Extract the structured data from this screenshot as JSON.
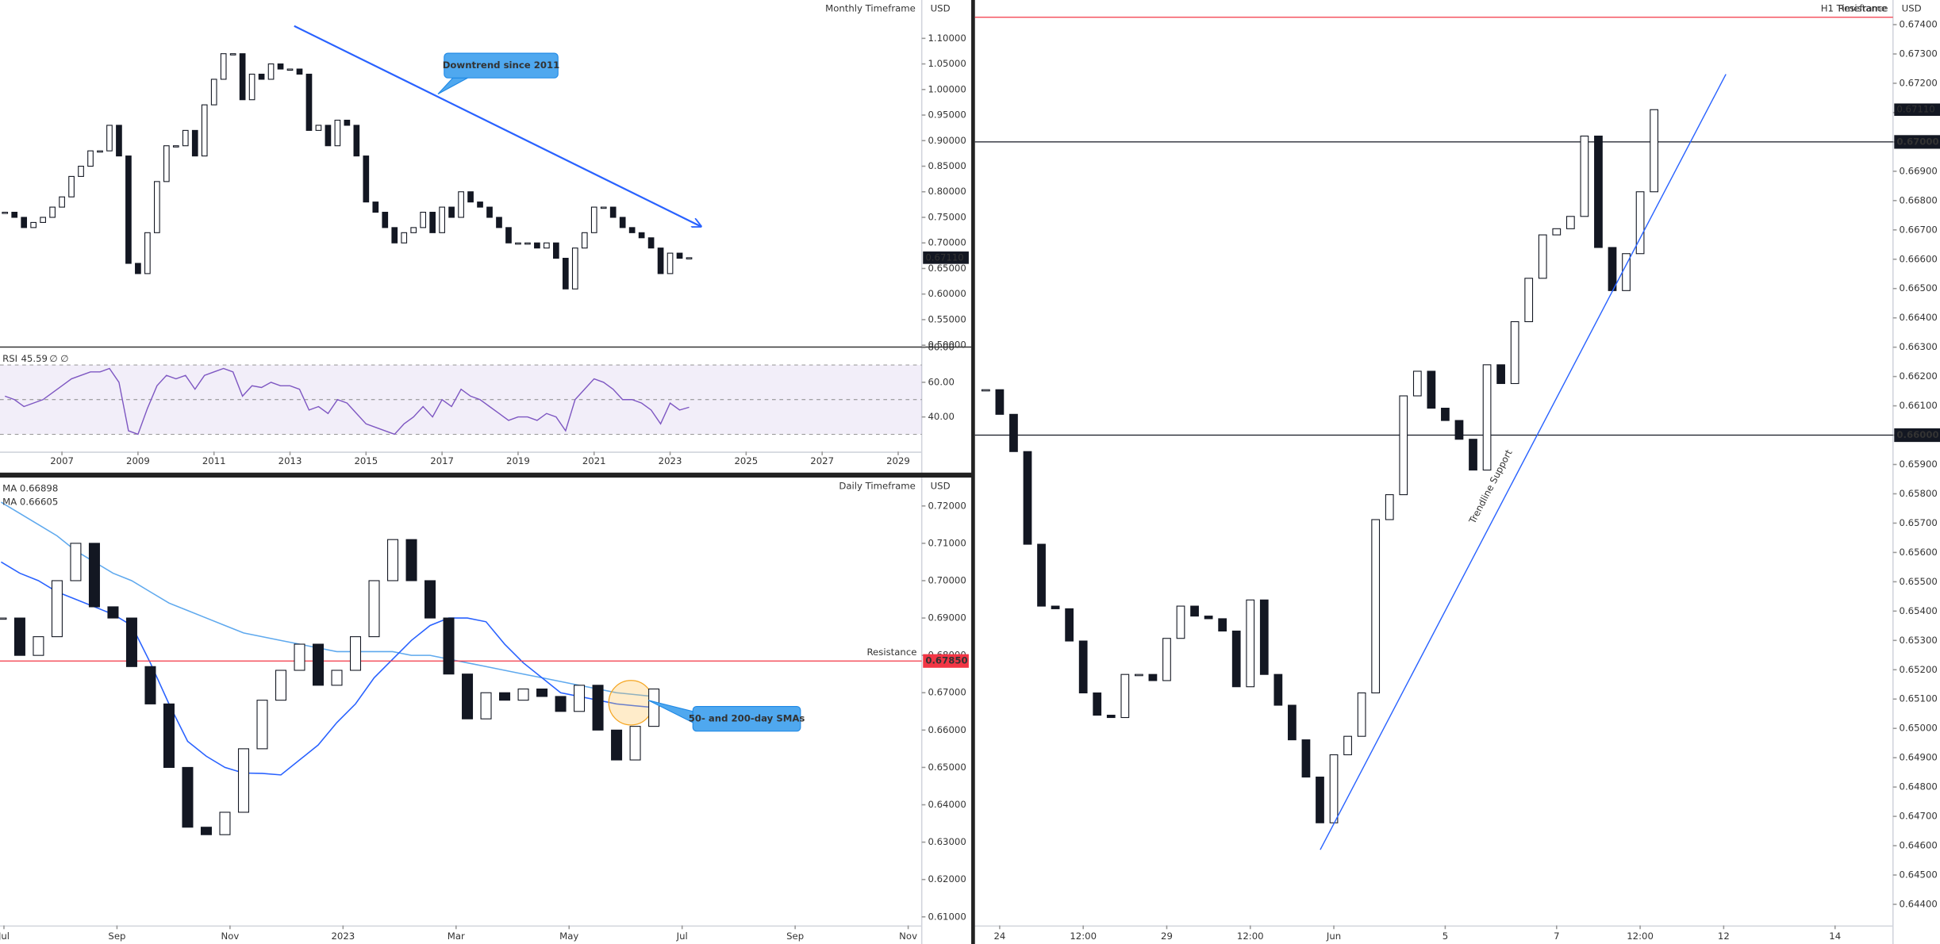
{
  "chart_data": [
    {
      "type": "candlestick",
      "title": "Monthly Timeframe",
      "currency": "USD",
      "x": [
        2005.5,
        2005.75,
        2006,
        2006.25,
        2006.5,
        2006.75,
        2007,
        2007.25,
        2007.5,
        2007.75,
        2008,
        2008.25,
        2008.5,
        2008.75,
        2009,
        2009.25,
        2009.5,
        2009.75,
        2010,
        2010.25,
        2010.5,
        2010.75,
        2011,
        2011.25,
        2011.5,
        2011.75,
        2012,
        2012.25,
        2012.5,
        2012.75,
        2013,
        2013.25,
        2013.5,
        2013.75,
        2014,
        2014.25,
        2014.5,
        2014.75,
        2015,
        2015.25,
        2015.5,
        2015.75,
        2016,
        2016.25,
        2016.5,
        2016.75,
        2017,
        2017.25,
        2017.5,
        2017.75,
        2018,
        2018.25,
        2018.5,
        2018.75,
        2019,
        2019.25,
        2019.5,
        2019.75,
        2020,
        2020.25,
        2020.5,
        2020.75,
        2021,
        2021.25,
        2021.5,
        2021.75,
        2022,
        2022.25,
        2022.5,
        2022.75,
        2023,
        2023.25,
        2023.5
      ],
      "values": [
        0.76,
        0.75,
        0.73,
        0.74,
        0.75,
        0.77,
        0.79,
        0.83,
        0.85,
        0.88,
        0.88,
        0.93,
        0.87,
        0.66,
        0.64,
        0.72,
        0.82,
        0.89,
        0.89,
        0.92,
        0.87,
        0.97,
        1.02,
        1.07,
        1.07,
        0.98,
        1.03,
        1.02,
        1.05,
        1.04,
        1.04,
        1.03,
        0.92,
        0.93,
        0.89,
        0.94,
        0.93,
        0.87,
        0.78,
        0.76,
        0.73,
        0.7,
        0.72,
        0.73,
        0.76,
        0.72,
        0.77,
        0.75,
        0.8,
        0.78,
        0.77,
        0.75,
        0.73,
        0.7,
        0.7,
        0.7,
        0.69,
        0.7,
        0.67,
        0.61,
        0.69,
        0.72,
        0.77,
        0.77,
        0.75,
        0.73,
        0.72,
        0.71,
        0.69,
        0.64,
        0.68,
        0.67,
        0.6711
      ],
      "xlim": [
        2005.37,
        2029.62
      ],
      "xticks": [
        2007,
        2009,
        2011,
        2013,
        2015,
        2017,
        2019,
        2021,
        2023,
        2025,
        2027,
        2029
      ],
      "ylim": [
        0.4976,
        1.175
      ],
      "yticks": [
        {
          "value": 0.5,
          "label": "0.50000"
        },
        {
          "value": 0.55,
          "label": "0.55000"
        },
        {
          "value": 0.6,
          "label": "0.60000"
        },
        {
          "value": 0.65,
          "label": "0.65000"
        },
        {
          "value": 0.7,
          "label": "0.70000"
        },
        {
          "value": 0.75,
          "label": "0.75000"
        },
        {
          "value": 0.8,
          "label": "0.80000"
        },
        {
          "value": 0.85,
          "label": "0.85000"
        },
        {
          "value": 0.9,
          "label": "0.90000"
        },
        {
          "value": 0.95,
          "label": "0.95000"
        },
        {
          "value": 1.0,
          "label": "1.00000"
        },
        {
          "value": 1.05,
          "label": "1.05000"
        },
        {
          "value": 1.1,
          "label": "1.10000"
        }
      ],
      "grid": false,
      "price_label": {
        "value": 0.6711,
        "label": "0.67110"
      },
      "trendline": {
        "start": {
          "x": 2013.11,
          "y": 1.1242
        },
        "end": {
          "x": 2023.81,
          "y": 0.7322
        },
        "color": "#2962ff",
        "arrow": true
      },
      "annotation": "Downtrend since 2011",
      "rsi": {
        "label": "RSI",
        "markers": "∅ ∅",
        "color": "#7e57c2",
        "values": [
          52,
          50,
          46,
          48,
          50,
          54,
          58,
          62,
          64,
          66,
          66,
          68,
          60,
          32,
          30,
          45,
          58,
          64,
          62,
          64,
          56,
          64,
          66,
          68,
          66,
          52,
          58,
          57,
          60,
          58,
          58,
          56,
          44,
          46,
          42,
          50,
          48,
          42,
          36,
          34,
          32,
          30,
          36,
          40,
          46,
          40,
          50,
          46,
          56,
          52,
          50,
          46,
          42,
          38,
          40,
          40,
          38,
          42,
          40,
          32,
          50,
          56,
          62,
          60,
          56,
          50,
          50,
          48,
          44,
          36,
          48,
          44,
          45.59
        ],
        "ylim": [
          20,
          80
        ],
        "yticks": [
          {
            "value": 40,
            "label": "40.00"
          },
          {
            "value": 60,
            "label": "60.00"
          },
          {
            "value": 80,
            "label": "80.00"
          }
        ],
        "bands": [
          30,
          50,
          70
        ]
      }
    },
    {
      "type": "candlestick",
      "title": "Daily Timeframe",
      "currency": "USD",
      "x": [
        5.95,
        6.28,
        6.61,
        6.94,
        7.27,
        7.6,
        7.93,
        8.26,
        8.59,
        8.92,
        9.25,
        9.58,
        9.91,
        10.24,
        10.57,
        10.9,
        11.23,
        11.56,
        11.89,
        12.22,
        12.55,
        12.88,
        13.21,
        13.54,
        13.87,
        14.2,
        14.53,
        14.86,
        15.19,
        15.52,
        15.85,
        16.18,
        16.51,
        16.84,
        17.17,
        17.5
      ],
      "values": [
        0.69,
        0.68,
        0.685,
        0.7,
        0.71,
        0.693,
        0.69,
        0.677,
        0.667,
        0.65,
        0.634,
        0.632,
        0.638,
        0.655,
        0.668,
        0.676,
        0.683,
        0.672,
        0.676,
        0.685,
        0.7,
        0.711,
        0.7,
        0.69,
        0.675,
        0.663,
        0.67,
        0.668,
        0.671,
        0.669,
        0.665,
        0.672,
        0.66,
        0.652,
        0.661,
        0.671
      ],
      "series": [
        {
          "name": "MA",
          "color": "#5fa9ee",
          "values": [
            0.721,
            0.718,
            0.715,
            0.712,
            0.708,
            0.705,
            0.702,
            0.7,
            0.697,
            0.694,
            0.692,
            0.69,
            0.688,
            0.686,
            0.685,
            0.684,
            0.683,
            0.682,
            0.681,
            0.681,
            0.681,
            0.681,
            0.68,
            0.68,
            0.679,
            0.678,
            0.677,
            0.676,
            0.675,
            0.674,
            0.673,
            0.672,
            0.671,
            0.67,
            0.6695,
            0.66898
          ]
        },
        {
          "name": "MA",
          "color": "#2962ff",
          "values": [
            0.705,
            0.702,
            0.7,
            0.697,
            0.695,
            0.693,
            0.691,
            0.688,
            0.678,
            0.667,
            0.657,
            0.653,
            0.65,
            0.6485,
            0.6484,
            0.648,
            0.652,
            0.656,
            0.662,
            0.667,
            0.674,
            0.679,
            0.684,
            0.688,
            0.69,
            0.69,
            0.689,
            0.683,
            0.678,
            0.674,
            0.67,
            0.669,
            0.668,
            0.667,
            0.6665,
            0.66605
          ]
        }
      ],
      "xlim": [
        5.93,
        22.24
      ],
      "xticks": [
        {
          "value": 6,
          "label": "Jul"
        },
        {
          "value": 8,
          "label": "Sep"
        },
        {
          "value": 10,
          "label": "Nov"
        },
        {
          "value": 12,
          "label": "2023"
        },
        {
          "value": 14,
          "label": "Mar"
        },
        {
          "value": 16,
          "label": "May"
        },
        {
          "value": 18,
          "label": "Jul"
        },
        {
          "value": 20,
          "label": "Sep"
        },
        {
          "value": 22,
          "label": "Nov"
        }
      ],
      "ylim": [
        0.6077,
        0.7276
      ],
      "yticks": [
        {
          "value": 0.61,
          "label": "0.61000"
        },
        {
          "value": 0.62,
          "label": "0.62000"
        },
        {
          "value": 0.63,
          "label": "0.63000"
        },
        {
          "value": 0.64,
          "label": "0.64000"
        },
        {
          "value": 0.65,
          "label": "0.65000"
        },
        {
          "value": 0.66,
          "label": "0.66000"
        },
        {
          "value": 0.67,
          "label": "0.67000"
        },
        {
          "value": 0.68,
          "label": "0.68000"
        },
        {
          "value": 0.69,
          "label": "0.69000"
        },
        {
          "value": 0.7,
          "label": "0.70000"
        },
        {
          "value": 0.71,
          "label": "0.71000"
        },
        {
          "value": 0.72,
          "label": "0.72000"
        }
      ],
      "grid": false,
      "levels": [
        {
          "value": 0.6785,
          "label": "0.67850",
          "text": "Resistance",
          "color": "#f23645"
        }
      ],
      "annotation": "50- and 200-day SMAs"
    },
    {
      "type": "candlestick",
      "title": "H1 Timeframe",
      "currency": "USD",
      "x": [
        -0.25,
        0,
        0.25,
        0.5,
        0.75,
        1,
        1.25,
        1.5,
        1.75,
        2,
        2.25,
        2.5,
        2.75,
        3,
        3.25,
        3.5,
        3.75,
        4,
        4.25,
        4.5,
        4.75,
        5,
        5.25,
        5.5,
        5.75,
        6,
        6.25,
        6.5,
        6.75,
        7,
        7.25,
        7.5,
        7.75,
        8,
        8.25,
        8.5,
        8.75,
        9,
        9.25,
        9.5,
        9.75,
        10,
        10.25,
        10.5,
        10.75,
        11,
        11.25,
        11.5,
        11.75
      ],
      "values": [
        0.66155,
        0.66071,
        0.65944,
        0.65628,
        0.65417,
        0.65408,
        0.65298,
        0.65121,
        0.65045,
        0.65037,
        0.65184,
        0.65184,
        0.65163,
        0.65307,
        0.65417,
        0.65383,
        0.65374,
        0.65332,
        0.65142,
        0.65438,
        0.65184,
        0.65079,
        0.64961,
        0.64834,
        0.64678,
        0.6491,
        0.64973,
        0.65121,
        0.65712,
        0.65797,
        0.66134,
        0.66218,
        0.66092,
        0.6605,
        0.65986,
        0.65881,
        0.6624,
        0.66176,
        0.66387,
        0.66535,
        0.66683,
        0.66704,
        0.66746,
        0.6702,
        0.6664,
        0.66493,
        0.66619,
        0.6683,
        0.6711
      ],
      "xlim": [
        -0.444,
        16.04
      ],
      "xticks": [
        {
          "value": 0,
          "label": "24"
        },
        {
          "value": 1.5,
          "label": "12:00"
        },
        {
          "value": 3,
          "label": "29"
        },
        {
          "value": 4.5,
          "label": "12:00"
        },
        {
          "value": 6,
          "label": "Jun"
        },
        {
          "value": 8,
          "label": "5"
        },
        {
          "value": 10,
          "label": "7"
        },
        {
          "value": 11.5,
          "label": "12:00"
        },
        {
          "value": 13,
          "label": "12"
        },
        {
          "value": 15,
          "label": "14"
        }
      ],
      "ylim": [
        0.64328,
        0.67484
      ],
      "yticks": [
        {
          "value": 0.644,
          "label": "0.64400"
        },
        {
          "value": 0.645,
          "label": "0.64500"
        },
        {
          "value": 0.646,
          "label": "0.64600"
        },
        {
          "value": 0.647,
          "label": "0.64700"
        },
        {
          "value": 0.648,
          "label": "0.64800"
        },
        {
          "value": 0.649,
          "label": "0.64900"
        },
        {
          "value": 0.65,
          "label": "0.65000"
        },
        {
          "value": 0.651,
          "label": "0.65100"
        },
        {
          "value": 0.652,
          "label": "0.65200"
        },
        {
          "value": 0.653,
          "label": "0.65300"
        },
        {
          "value": 0.654,
          "label": "0.65400"
        },
        {
          "value": 0.655,
          "label": "0.65500"
        },
        {
          "value": 0.656,
          "label": "0.65600"
        },
        {
          "value": 0.657,
          "label": "0.65700"
        },
        {
          "value": 0.658,
          "label": "0.65800"
        },
        {
          "value": 0.659,
          "label": "0.65900"
        },
        {
          "value": 0.66,
          "label": "0.66000"
        },
        {
          "value": 0.661,
          "label": "0.66100"
        },
        {
          "value": 0.662,
          "label": "0.66200"
        },
        {
          "value": 0.663,
          "label": "0.66300"
        },
        {
          "value": 0.664,
          "label": "0.66400"
        },
        {
          "value": 0.665,
          "label": "0.66500"
        },
        {
          "value": 0.666,
          "label": "0.66600"
        },
        {
          "value": 0.667,
          "label": "0.66700"
        },
        {
          "value": 0.668,
          "label": "0.66800"
        },
        {
          "value": 0.669,
          "label": "0.66900"
        },
        {
          "value": 0.67,
          "label": "0.67000"
        },
        {
          "value": 0.671,
          "label": "0.67100"
        },
        {
          "value": 0.672,
          "label": "0.67200"
        },
        {
          "value": 0.673,
          "label": "0.67300"
        },
        {
          "value": 0.674,
          "label": "0.67400"
        }
      ],
      "grid": false,
      "levels": [
        {
          "value": 0.67,
          "label": "0.67000",
          "color": "#131722"
        },
        {
          "value": 0.66,
          "label": "0.66000",
          "color": "#131722"
        },
        {
          "value": 0.67425,
          "text": "Resistance",
          "color": "#f23645"
        }
      ],
      "price_label": {
        "value": 0.6711,
        "label": "0.67110"
      },
      "trendline": {
        "start": {
          "x": 5.756,
          "y": 0.64586
        },
        "end": {
          "x": 13.04,
          "y": 0.67231
        },
        "color": "#2962ff",
        "text": "Trendline Support"
      }
    }
  ]
}
